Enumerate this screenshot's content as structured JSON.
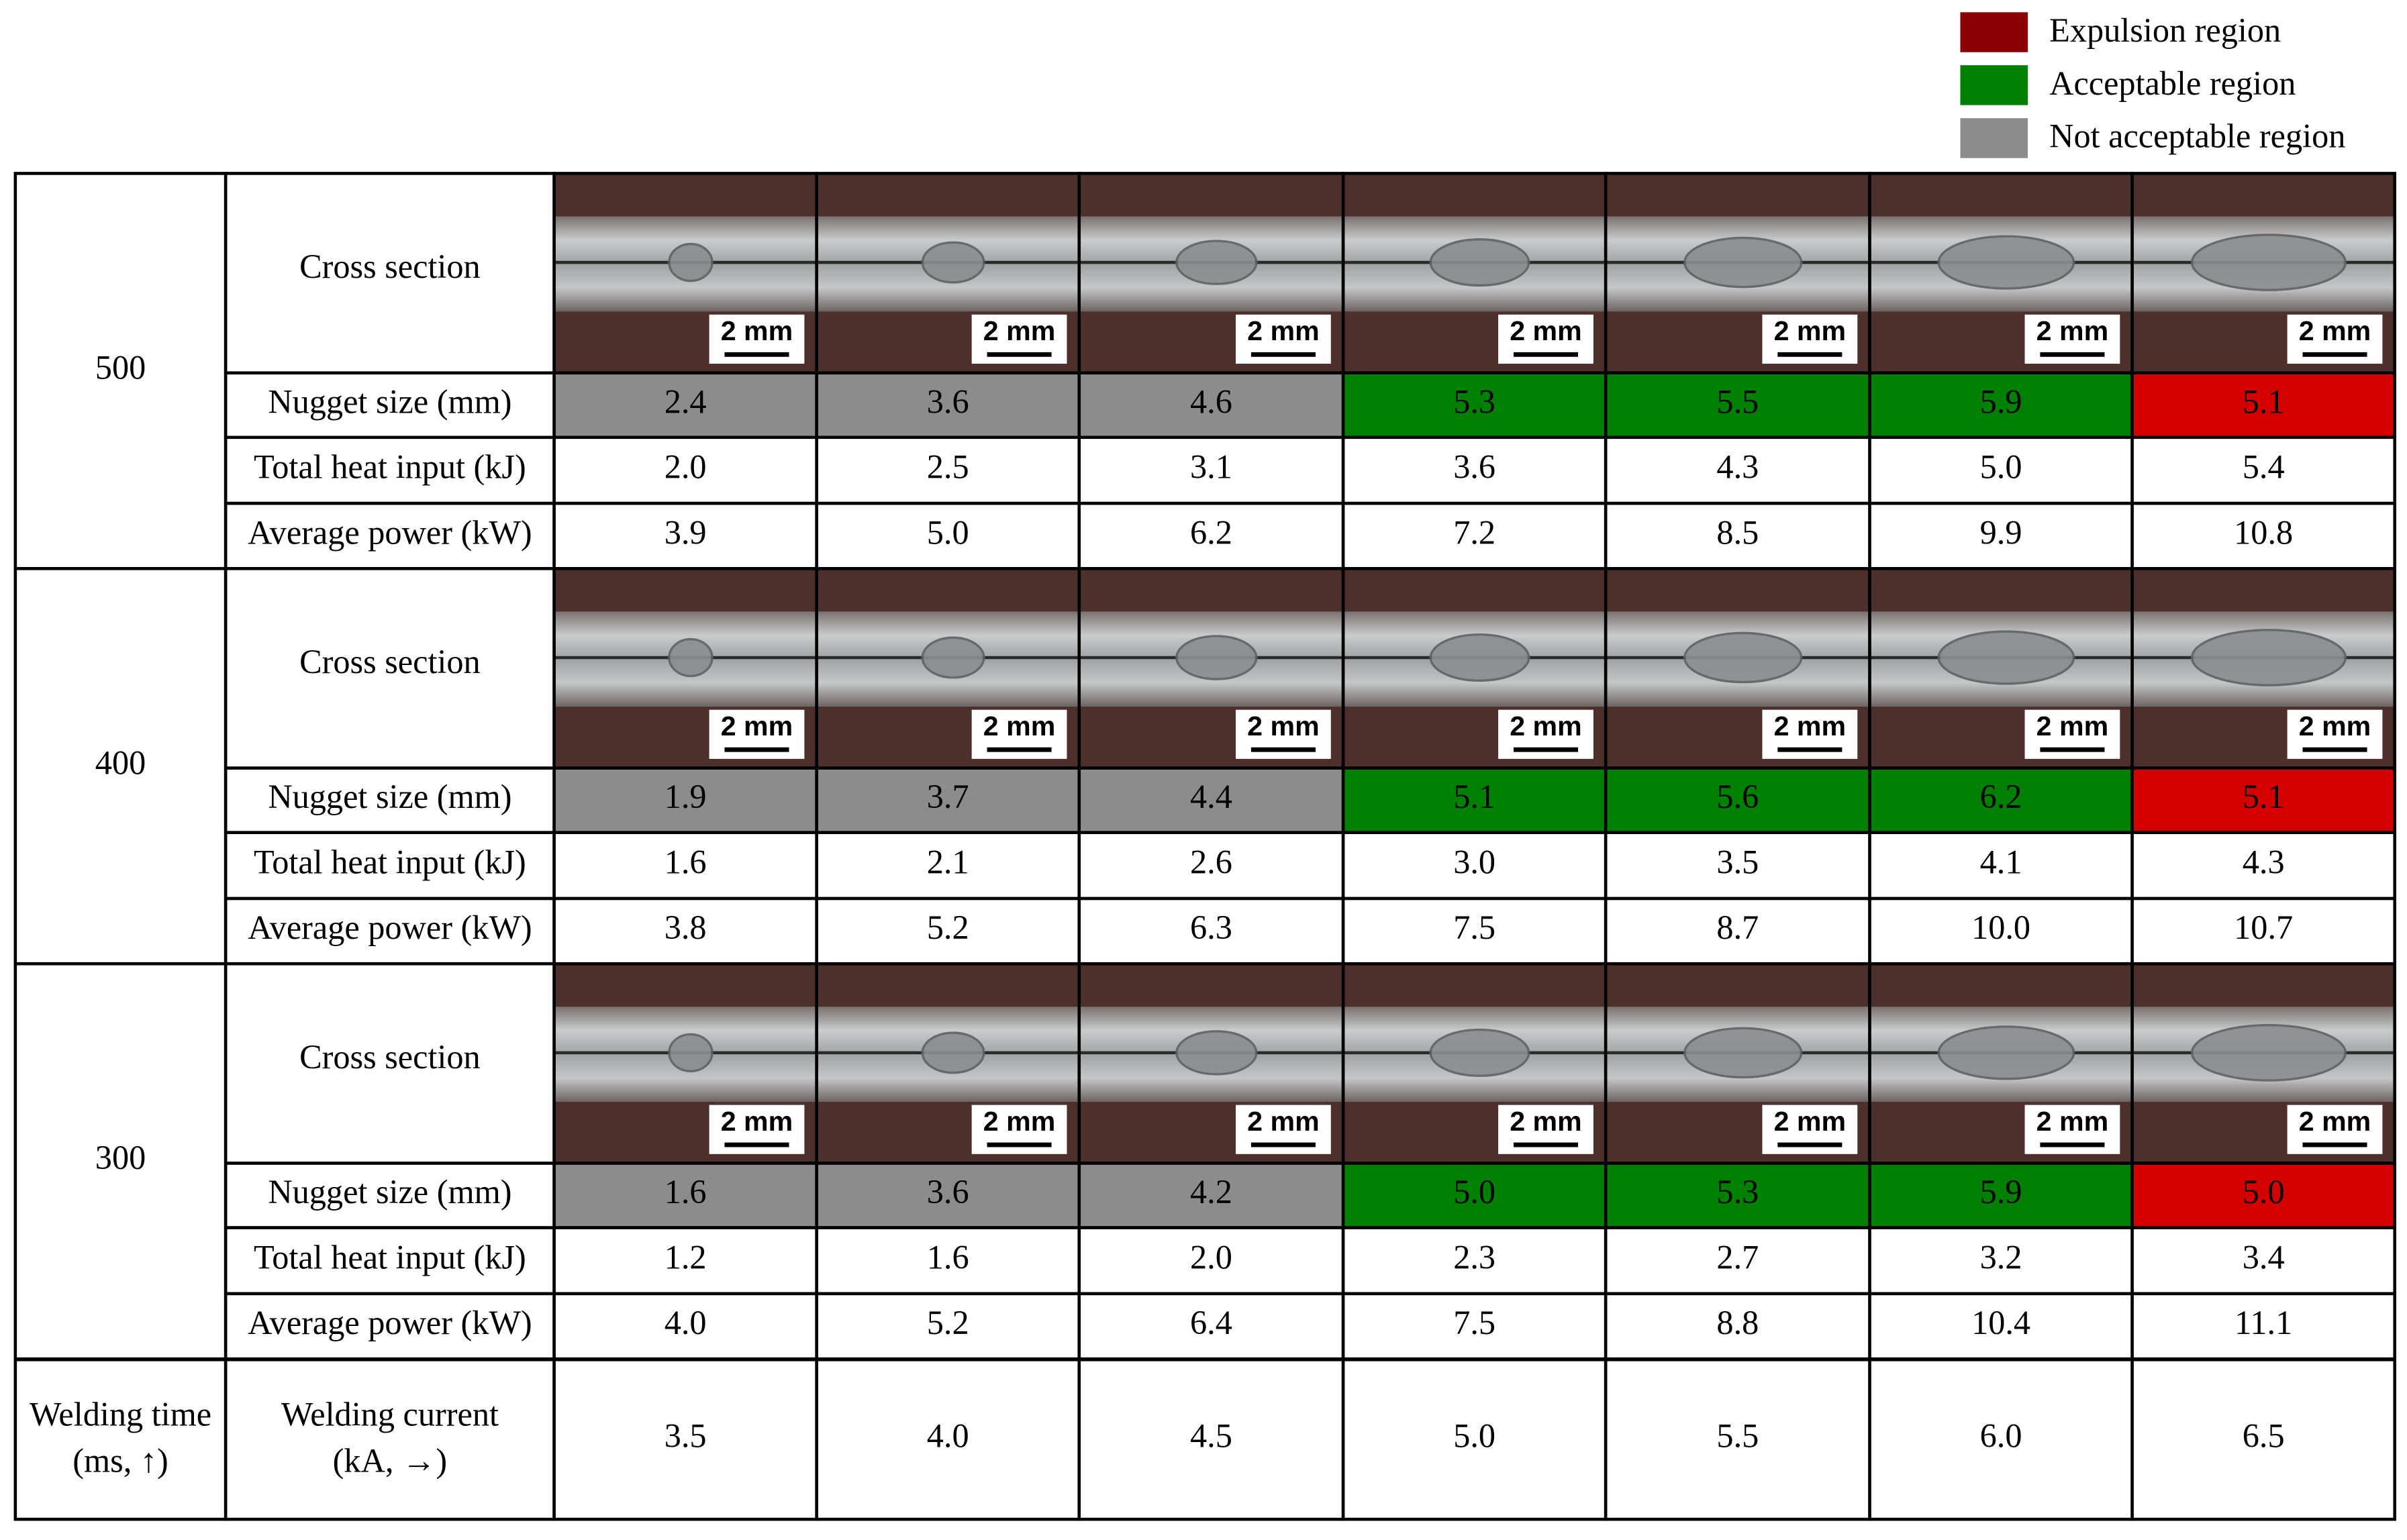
{
  "legend": [
    {
      "label": "Expulsion region",
      "color": "#8b0000"
    },
    {
      "label": "Acceptable region",
      "color": "#008000"
    },
    {
      "label": "Not acceptable region",
      "color": "#8c8c8c"
    }
  ],
  "groups": [
    {
      "welding_time": "500",
      "cross_section": {
        "label": "Cross section",
        "scale_labels": [
          "2 mm",
          "2 mm",
          "2 mm",
          "2 mm",
          "2 mm",
          "2 mm",
          "2 mm"
        ]
      },
      "nugget": {
        "label": "Nugget size (mm)",
        "values": [
          "2.4",
          "3.6",
          "4.6",
          "5.3",
          "5.5",
          "5.9",
          "5.1"
        ],
        "colors": [
          "#8c8c8c",
          "#8c8c8c",
          "#8c8c8c",
          "#008000",
          "#008000",
          "#008000",
          "#d40000"
        ]
      },
      "heat": {
        "label": "Total heat input (kJ)",
        "values": [
          "2.0",
          "2.5",
          "3.1",
          "3.6",
          "4.3",
          "5.0",
          "5.4"
        ]
      },
      "power": {
        "label": "Average power (kW)",
        "values": [
          "3.9",
          "5.0",
          "6.2",
          "7.2",
          "8.5",
          "9.9",
          "10.8"
        ]
      }
    },
    {
      "welding_time": "400",
      "cross_section": {
        "label": "Cross section",
        "scale_labels": [
          "2 mm",
          "2 mm",
          "2 mm",
          "2 mm",
          "2 mm",
          "2 mm",
          "2 mm"
        ]
      },
      "nugget": {
        "label": "Nugget size (mm)",
        "values": [
          "1.9",
          "3.7",
          "4.4",
          "5.1",
          "5.6",
          "6.2",
          "5.1"
        ],
        "colors": [
          "#8c8c8c",
          "#8c8c8c",
          "#8c8c8c",
          "#008000",
          "#008000",
          "#008000",
          "#d40000"
        ]
      },
      "heat": {
        "label": "Total heat input (kJ)",
        "values": [
          "1.6",
          "2.1",
          "2.6",
          "3.0",
          "3.5",
          "4.1",
          "4.3"
        ]
      },
      "power": {
        "label": "Average power (kW)",
        "values": [
          "3.8",
          "5.2",
          "6.3",
          "7.5",
          "8.7",
          "10.0",
          "10.7"
        ]
      }
    },
    {
      "welding_time": "300",
      "cross_section": {
        "label": "Cross section",
        "scale_labels": [
          "2 mm",
          "2 mm",
          "2 mm",
          "2 mm",
          "2 mm",
          "2 mm",
          "2 mm"
        ]
      },
      "nugget": {
        "label": "Nugget size (mm)",
        "values": [
          "1.6",
          "3.6",
          "4.2",
          "5.0",
          "5.3",
          "5.9",
          "5.0"
        ],
        "colors": [
          "#8c8c8c",
          "#8c8c8c",
          "#8c8c8c",
          "#008000",
          "#008000",
          "#008000",
          "#d40000"
        ]
      },
      "heat": {
        "label": "Total heat input (kJ)",
        "values": [
          "1.2",
          "1.6",
          "2.0",
          "2.3",
          "2.7",
          "3.2",
          "3.4"
        ]
      },
      "power": {
        "label": "Average power (kW)",
        "values": [
          "4.0",
          "5.2",
          "6.4",
          "7.5",
          "8.8",
          "10.4",
          "11.1"
        ]
      }
    }
  ],
  "footer": {
    "time_label": [
      "Welding time",
      "(ms, ↑)"
    ],
    "current_label": [
      "Welding current",
      "(kA, →)"
    ],
    "currents": [
      "3.5",
      "4.0",
      "4.5",
      "5.0",
      "5.5",
      "6.0",
      "6.5"
    ]
  }
}
